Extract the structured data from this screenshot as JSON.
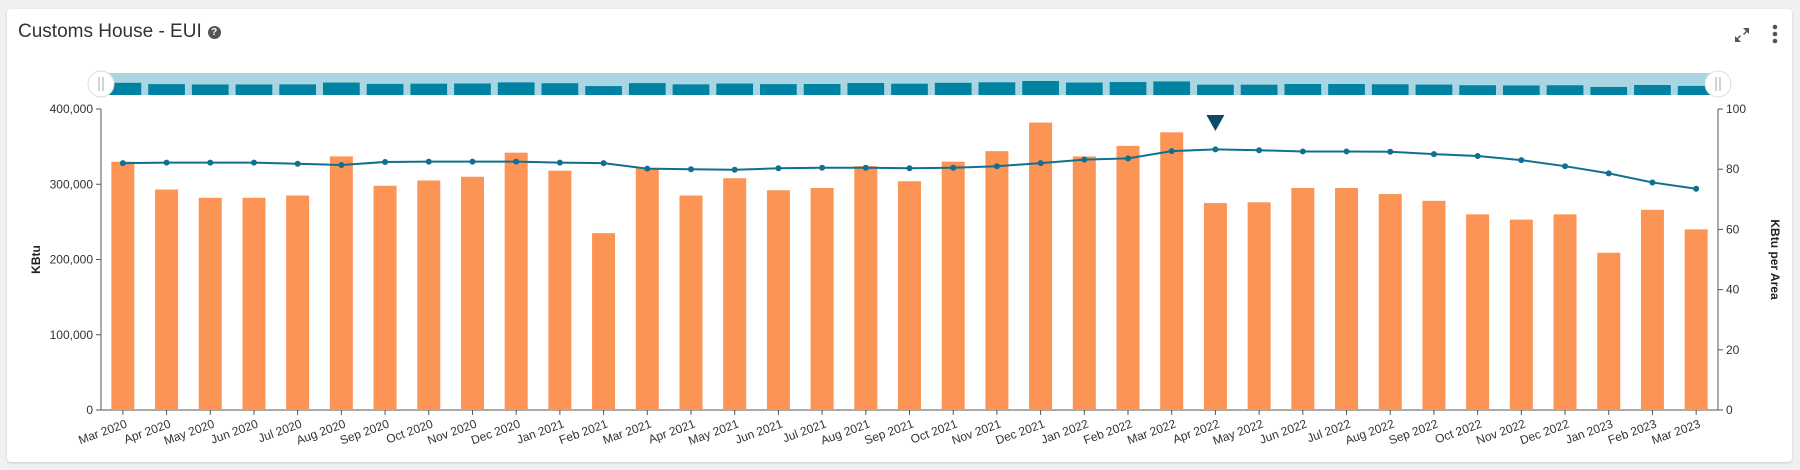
{
  "header": {
    "title": "Customs House - EUI",
    "help_icon": "question-circle-icon",
    "expand_icon": "expand-icon",
    "menu_icon": "kebab-menu-icon"
  },
  "colors": {
    "bar": "#fb9455",
    "line": "#11708f",
    "navigator_bg": "#a9d6e2",
    "navigator_bar": "#0083a3",
    "marker": "#0d4a66"
  },
  "chart_data": {
    "type": "bar+line",
    "title": "Customs House - EUI",
    "categories": [
      "Mar 2020",
      "Apr 2020",
      "May 2020",
      "Jun 2020",
      "Jul 2020",
      "Aug 2020",
      "Sep 2020",
      "Oct 2020",
      "Nov 2020",
      "Dec 2020",
      "Jan 2021",
      "Feb 2021",
      "Mar 2021",
      "Apr 2021",
      "May 2021",
      "Jun 2021",
      "Jul 2021",
      "Aug 2021",
      "Sep 2021",
      "Oct 2021",
      "Nov 2021",
      "Dec 2021",
      "Jan 2022",
      "Feb 2022",
      "Mar 2022",
      "Apr 2022",
      "May 2022",
      "Jun 2022",
      "Jul 2022",
      "Aug 2022",
      "Sep 2022",
      "Oct 2022",
      "Nov 2022",
      "Dec 2022",
      "Jan 2023",
      "Feb 2023",
      "Mar 2023"
    ],
    "series": [
      {
        "name": "KBtu",
        "type": "bar",
        "axis": "left",
        "values": [
          330000,
          293000,
          282000,
          282000,
          285000,
          337000,
          298000,
          305000,
          310000,
          342000,
          318000,
          235000,
          321000,
          285000,
          308000,
          292000,
          295000,
          324000,
          304000,
          330000,
          344000,
          382000,
          337000,
          351000,
          369000,
          275000,
          276000,
          295000,
          295000,
          287000,
          278000,
          260000,
          253000,
          260000,
          209000,
          266000,
          240000
        ]
      },
      {
        "name": "KBtu per Area",
        "type": "line",
        "axis": "right",
        "values": [
          82,
          82.2,
          82.2,
          82.2,
          81.8,
          81.4,
          82.4,
          82.5,
          82.5,
          82.5,
          82.2,
          82,
          80.2,
          80,
          79.8,
          80.3,
          80.5,
          80.5,
          80.3,
          80.5,
          81,
          82,
          83.2,
          83.6,
          86,
          86.6,
          86.3,
          85.9,
          85.9,
          85.8,
          85,
          84.4,
          83,
          81,
          78.6,
          75.6,
          73.5
        ]
      }
    ],
    "ylabel": "KBtu",
    "ylim": [
      0,
      400000
    ],
    "yticks": [
      "0",
      "100,000",
      "200,000",
      "300,000",
      "400,000"
    ],
    "y2label": "KBtu per Area",
    "y2lim": [
      0,
      100
    ],
    "y2ticks": [
      "0",
      "20",
      "40",
      "60",
      "80",
      "100"
    ],
    "marker_category": "Apr 2022",
    "grid": false
  }
}
